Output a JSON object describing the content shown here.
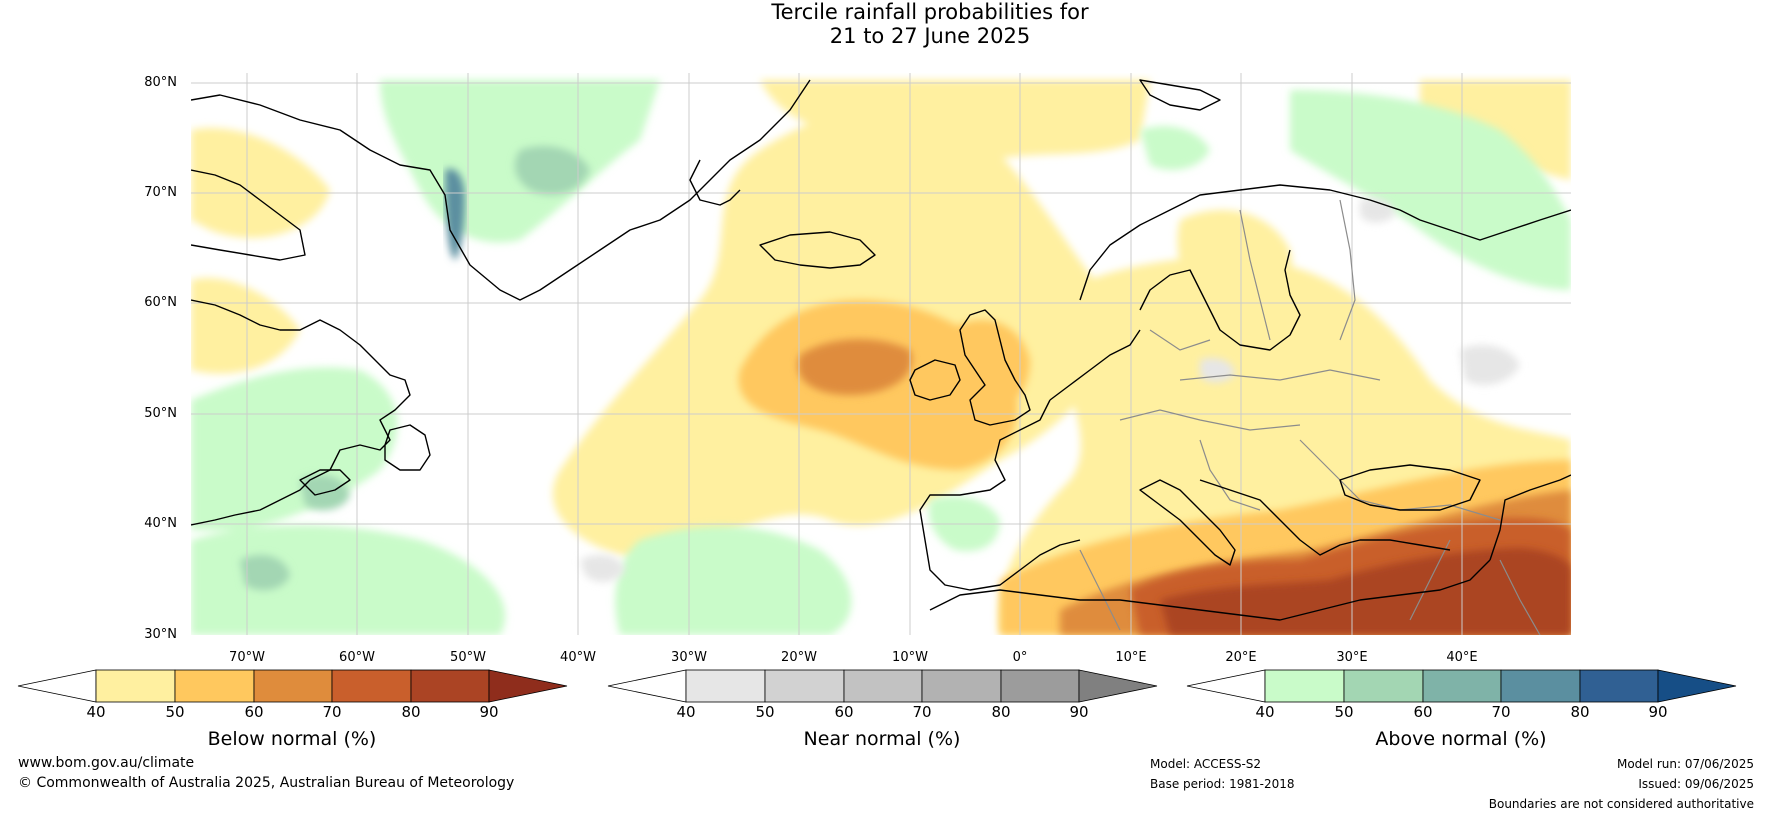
{
  "title": {
    "line1": "Tercile rainfall probabilities for",
    "line2": "21 to 27 June 2025"
  },
  "map": {
    "lat_labels": [
      "80°N",
      "70°N",
      "60°N",
      "50°N",
      "40°N",
      "30°N"
    ],
    "lon_labels": [
      "70°W",
      "60°W",
      "50°W",
      "40°W",
      "30°W",
      "20°W",
      "10°W",
      "0°",
      "10°E",
      "20°E",
      "30°E",
      "40°E"
    ],
    "colors": {
      "below": [
        "#fff0a0",
        "#ffc85e",
        "#df8c3c",
        "#c95f2c",
        "#ab4424",
        "#8f2d1c"
      ],
      "near": [
        "#e6e6e6",
        "#d2d2d2",
        "#c2c2c2",
        "#b2b2b2",
        "#9c9c9c",
        "#808080"
      ],
      "above": [
        "#c9fbc9",
        "#a3d6b3",
        "#7fb3a8",
        "#5b8fa0",
        "#306093",
        "#164e86"
      ],
      "coastline": "#000000",
      "borders": "#8c8c8c",
      "gridlines": "#cccccc"
    }
  },
  "colorbars": [
    {
      "label": "Below normal (%)",
      "ticks": [
        "40",
        "50",
        "60",
        "70",
        "80",
        "90"
      ]
    },
    {
      "label": "Near normal (%)",
      "ticks": [
        "40",
        "50",
        "60",
        "70",
        "80",
        "90"
      ]
    },
    {
      "label": "Above normal (%)",
      "ticks": [
        "40",
        "50",
        "60",
        "70",
        "80",
        "90"
      ]
    }
  ],
  "footer": {
    "website": "www.bom.gov.au/climate",
    "copyright": "© Commonwealth of Australia 2025, Australian Bureau of Meteorology",
    "model": "Model: ACCESS-S2",
    "base_period": "Base period: 1981-2018",
    "model_run": "Model run: 07/06/2025",
    "issued": "Issued: 09/06/2025",
    "disclaimer": "Boundaries are not considered authoritative"
  }
}
